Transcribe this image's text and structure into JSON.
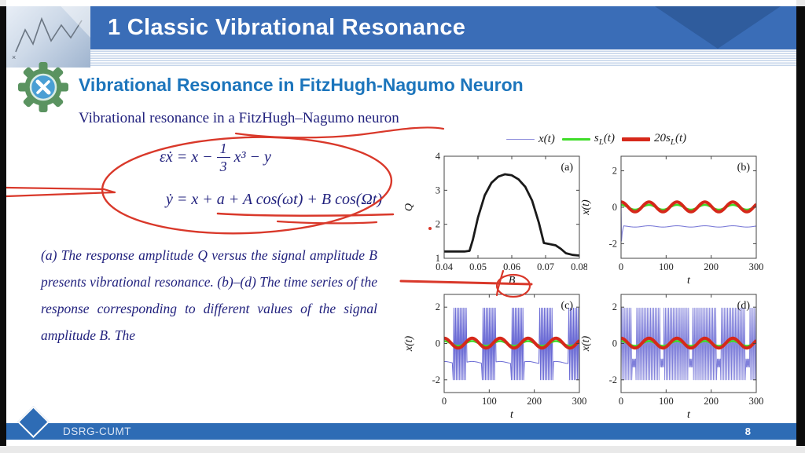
{
  "header": {
    "title": "1 Classic Vibrational Resonance"
  },
  "section": {
    "heading": "Vibrational Resonance in FitzHugh-Nagumo Neuron",
    "subheading": "Vibrational resonance in a FitzHugh–Nagumo neuron"
  },
  "equations": {
    "eq1_pre": "εẋ = x −",
    "eq1_num": "1",
    "eq1_den": "3",
    "eq1_post": "x³ − y",
    "eq2": "ẏ = x + a + A cos(ωt) + B cos(Ωt)"
  },
  "caption": {
    "text": "(a) The response amplitude Q versus the signal amplitude B presents vibrational resonance. (b)–(d) The time series of the response corresponding to different values of the signal amplitude B. The"
  },
  "figure": {
    "legend": [
      {
        "pre": "x",
        "sub": "",
        "post": "(t)",
        "color": "#8f8fdc",
        "weight": 1.5
      },
      {
        "pre": "s",
        "sub": "L",
        "post": "(t)",
        "color": "#3fdc28",
        "weight": 3
      },
      {
        "pre": "20s",
        "sub": "L",
        "post": "(t)",
        "color": "#d6281a",
        "weight": 4.5
      }
    ]
  },
  "chart_data": [
    {
      "id": "a",
      "type": "line",
      "corner": "(a)",
      "xlabel": "B",
      "ylabel": "Q",
      "xlim": [
        0.04,
        0.08
      ],
      "ylim": [
        1,
        4
      ],
      "xticks": [
        0.04,
        0.05,
        0.06,
        0.07,
        0.08
      ],
      "xtick_labels": [
        "0.04",
        "0.05",
        "0.06",
        "0.07",
        "0.08"
      ],
      "yticks": [
        1,
        2,
        3,
        4
      ],
      "ytick_labels": [
        "1",
        "2",
        "3",
        "4"
      ],
      "series": [
        {
          "name": "Q",
          "gen": "data",
          "color": "#1a1a1a",
          "width": 2.8,
          "x": [
            0.04,
            0.043,
            0.046,
            0.0475,
            0.0485,
            0.05,
            0.052,
            0.054,
            0.056,
            0.058,
            0.06,
            0.062,
            0.064,
            0.066,
            0.068,
            0.0695,
            0.071,
            0.073,
            0.0745,
            0.076,
            0.078,
            0.08
          ],
          "y": [
            1.2,
            1.2,
            1.2,
            1.22,
            1.55,
            2.2,
            2.85,
            3.22,
            3.4,
            3.47,
            3.44,
            3.32,
            3.1,
            2.7,
            2.05,
            1.45,
            1.42,
            1.38,
            1.28,
            1.15,
            1.1,
            1.08
          ]
        }
      ]
    },
    {
      "id": "b",
      "type": "line",
      "corner": "(b)",
      "xlabel": "t",
      "ylabel": "x(t)",
      "xlim": [
        0,
        300
      ],
      "ylim": [
        -2.8,
        2.8
      ],
      "xticks": [
        0,
        100,
        200,
        300
      ],
      "xtick_labels": [
        "0",
        "100",
        "200",
        "300"
      ],
      "yticks": [
        -2,
        0,
        2
      ],
      "ytick_labels": [
        "-2",
        "0",
        "2"
      ],
      "series": [
        {
          "name": "x(t)",
          "gen": "settle",
          "color": "#7d7dd8",
          "width": 1.1,
          "head": [
            [
              0,
              0.3
            ],
            [
              1,
              -1.85
            ],
            [
              2.5,
              -1.4
            ],
            [
              5,
              -1.1
            ]
          ],
          "level": -1.05,
          "ripple": 0.035,
          "period": 62,
          "range": [
            0,
            300
          ]
        },
        {
          "name": "sL(t)",
          "gen": "sine",
          "color": "#3fdc28",
          "width": 2.6,
          "amp": 0.13,
          "mean": 0,
          "period": 62,
          "range": [
            0,
            300
          ]
        },
        {
          "name": "20sL(t)",
          "gen": "sine",
          "color": "#d6281a",
          "width": 4,
          "amp": 0.27,
          "mean": 0.02,
          "period": 62,
          "range": [
            0,
            300
          ]
        }
      ]
    },
    {
      "id": "c",
      "type": "line",
      "corner": "(c)",
      "xlabel": "t",
      "ylabel": "x(t)",
      "xlim": [
        0,
        300
      ],
      "ylim": [
        -2.7,
        2.7
      ],
      "xticks": [
        0,
        100,
        200,
        300
      ],
      "xtick_labels": [
        "0",
        "100",
        "200",
        "300"
      ],
      "yticks": [
        -2,
        0,
        2
      ],
      "ytick_labels": [
        "-2",
        "0",
        "2"
      ],
      "series": [
        {
          "name": "x(t)",
          "gen": "bursts",
          "color": "#5b5bd0",
          "width": 1.0,
          "opacity": 0.9,
          "windows": [
            [
              20,
              50
            ],
            [
              84,
              114
            ],
            [
              148,
              178
            ],
            [
              212,
              242
            ],
            [
              276,
              300
            ]
          ],
          "hi": 1.95,
          "lo": -2.0,
          "spike_step": 1.7,
          "base": -1.05,
          "ripple": 0.06,
          "period": 62,
          "range": [
            0,
            300
          ]
        },
        {
          "name": "sL(t)",
          "gen": "sine",
          "color": "#3fdc28",
          "width": 2.6,
          "amp": 0.13,
          "mean": 0,
          "period": 62,
          "range": [
            0,
            300
          ]
        },
        {
          "name": "20sL(t)",
          "gen": "sine",
          "color": "#d6281a",
          "width": 4,
          "amp": 0.27,
          "mean": 0.02,
          "period": 62,
          "range": [
            0,
            300
          ]
        }
      ]
    },
    {
      "id": "d",
      "type": "line",
      "corner": "(d)",
      "xlabel": "t",
      "ylabel": "x(t)",
      "xlim": [
        0,
        300
      ],
      "ylim": [
        -2.7,
        2.7
      ],
      "xticks": [
        0,
        100,
        200,
        300
      ],
      "xtick_labels": [
        "0",
        "100",
        "200",
        "300"
      ],
      "yticks": [
        -2,
        0,
        2
      ],
      "ytick_labels": [
        "-2",
        "0",
        "2"
      ],
      "series": [
        {
          "name": "x(t)",
          "gen": "spikes",
          "color": "#6868d4",
          "width": 0.9,
          "opacity": 0.85,
          "hi": 1.95,
          "lo": -2.0,
          "spike_step": 1.7,
          "pauses": [
            [
              25,
              33
            ],
            [
              87,
              95
            ],
            [
              150,
              158
            ],
            [
              213,
              221
            ],
            [
              277,
              285
            ]
          ],
          "pause_hi": -0.85,
          "pause_lo": -1.3,
          "pause_step": 1.1,
          "range": [
            0,
            300
          ]
        },
        {
          "name": "sL(t)",
          "gen": "sine",
          "color": "#3fdc28",
          "width": 2.6,
          "amp": 0.13,
          "mean": 0,
          "period": 62,
          "range": [
            0,
            300
          ]
        },
        {
          "name": "20sL(t)",
          "gen": "sine",
          "color": "#d6281a",
          "width": 4,
          "amp": 0.27,
          "mean": 0.02,
          "period": 62,
          "range": [
            0,
            300
          ]
        }
      ]
    }
  ],
  "footer": {
    "label": "DSRG-CUMT",
    "page": "8"
  },
  "colors": {
    "header_bar": "#3a6db7",
    "header_chevron": "#31609e",
    "stripe_blue": "#c6d5ea",
    "heading_blue": "#1c75bc",
    "navy": "#22227e",
    "annotation_red": "#d9382a",
    "footer_bar": "#2e6cb5",
    "footer_text": "#dce6f4",
    "frame_black": "#0c0c0c",
    "edge_gray": "#e9e9e9"
  }
}
